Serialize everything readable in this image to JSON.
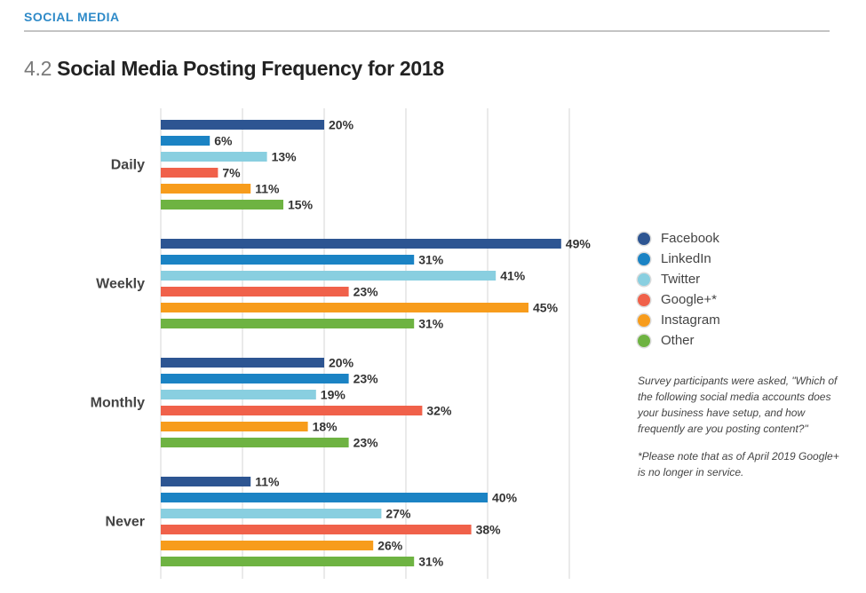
{
  "header": {
    "section_label": "SOCIAL MEDIA",
    "title_number": "4.2",
    "title_text": "Social Media Posting Frequency for 2018"
  },
  "chart_data": {
    "type": "bar",
    "orientation": "horizontal",
    "title": "Social Media Posting Frequency for 2018",
    "categories": [
      "Daily",
      "Weekly",
      "Monthly",
      "Never"
    ],
    "series": [
      {
        "name": "Facebook",
        "color": "#2d5592",
        "values": [
          20,
          49,
          20,
          11
        ]
      },
      {
        "name": "LinkedIn",
        "color": "#1b83c4",
        "values": [
          6,
          31,
          23,
          40
        ]
      },
      {
        "name": "Twitter",
        "color": "#89cfe0",
        "values": [
          13,
          41,
          19,
          27
        ]
      },
      {
        "name": "Google+*",
        "color": "#f0614a",
        "values": [
          7,
          23,
          32,
          38
        ]
      },
      {
        "name": "Instagram",
        "color": "#f79c1c",
        "values": [
          11,
          45,
          18,
          26
        ]
      },
      {
        "name": "Other",
        "color": "#6eb342",
        "values": [
          15,
          31,
          23,
          31
        ]
      }
    ],
    "value_suffix": "%",
    "xlim": [
      0,
      50
    ],
    "x_gridlines": [
      0,
      10,
      20,
      30,
      40,
      50
    ],
    "grid": true,
    "xlabel": "",
    "ylabel": "",
    "legend_position": "right"
  },
  "notes": {
    "survey_question": "Survey participants were asked, \"Which of the following social media accounts does your business have setup, and how frequently are you posting content?\"",
    "googleplus_note": "*Please note that as of April 2019 Google+ is no longer in service."
  }
}
